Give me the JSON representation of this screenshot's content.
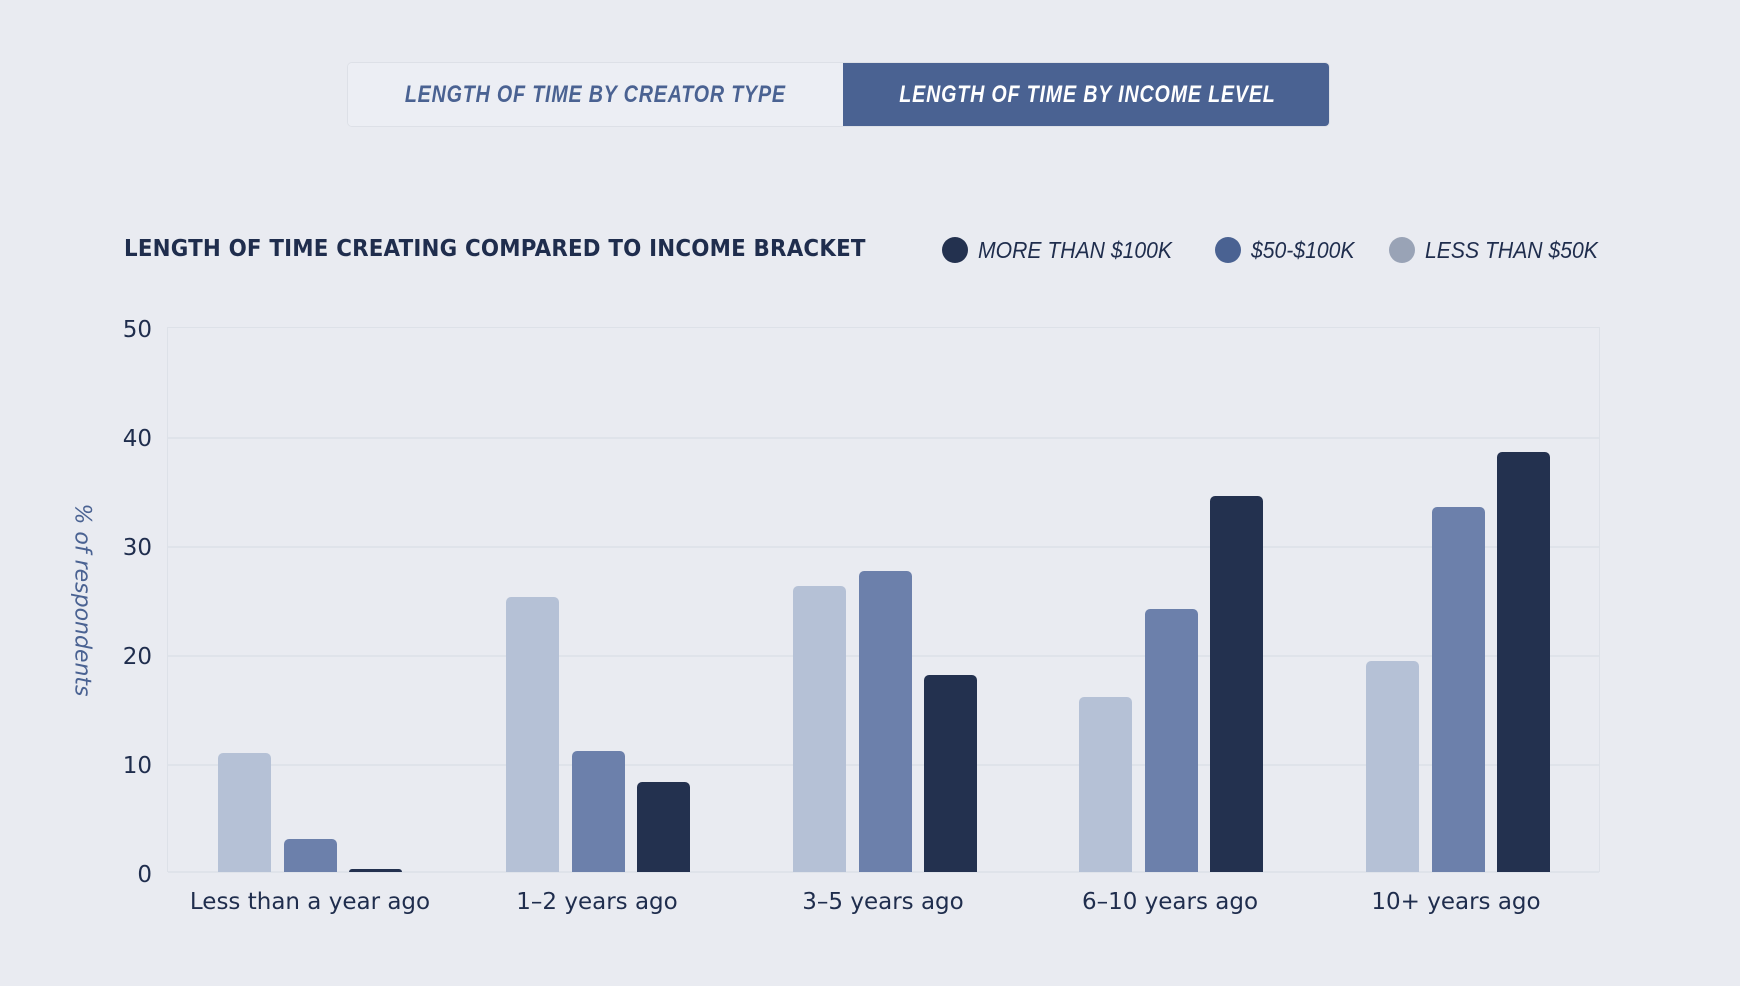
{
  "tabs": [
    {
      "label": "LENGTH OF TIME BY CREATOR TYPE",
      "active": false
    },
    {
      "label": "LENGTH OF TIME BY INCOME LEVEL",
      "active": true
    }
  ],
  "colors": {
    "more_than_100k": "#23314f",
    "50_100k": "#6c80ab",
    "less_than_50k_bar": "#b5c1d6",
    "less_than_50k_legend": "#99a3b6",
    "active_tab": "#4a6292",
    "background": "#e9ebf1"
  },
  "chart_data": {
    "type": "bar",
    "title": "LENGTH OF TIME CREATING COMPARED TO INCOME BRACKET",
    "xlabel": "",
    "ylabel": "% of respondents",
    "ylim": [
      0,
      50
    ],
    "yticks": [
      "50",
      "40",
      "30",
      "20",
      "10",
      "0"
    ],
    "grid": true,
    "legend_position": "top-right",
    "legend": [
      "MORE THAN $100K",
      "$50-$100K",
      "LESS THAN $50K"
    ],
    "categories": [
      "Less than a year ago",
      "1–2 years ago",
      "3–5 years ago",
      "6–10 years ago",
      "10+ years ago"
    ],
    "series": [
      {
        "name": "LESS THAN $50K",
        "values": [
          10.9,
          25.2,
          26.2,
          16.1,
          19.4
        ]
      },
      {
        "name": "$50-$100K",
        "values": [
          3.0,
          11.1,
          27.6,
          24.1,
          33.5
        ]
      },
      {
        "name": "MORE THAN $100K",
        "values": [
          0.3,
          8.3,
          18.1,
          34.5,
          38.5
        ]
      }
    ]
  }
}
